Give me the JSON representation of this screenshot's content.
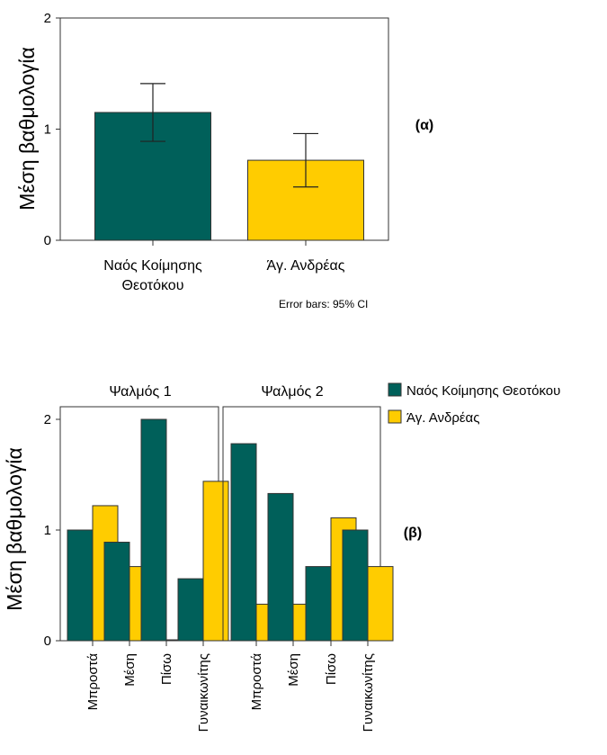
{
  "colors": {
    "series1": "#00605A",
    "series2": "#FFCC00",
    "frame": "#333333"
  },
  "chart_data": [
    {
      "type": "bar",
      "panel_label": "(α)",
      "ylabel": "Μέση βαθμολογία",
      "ylim": [
        0,
        2
      ],
      "yticks": [
        0,
        1,
        2
      ],
      "categories": [
        "Ναός Κοίμησης Θεοτόκου",
        "Άγ. Ανδρέας"
      ],
      "category_lines": [
        [
          "Ναός Κοίμησης",
          "Θεοτόκου"
        ],
        [
          "Άγ. Ανδρέας"
        ]
      ],
      "values": [
        1.15,
        0.72
      ],
      "error_bars": [
        [
          0.89,
          1.41
        ],
        [
          0.48,
          0.96
        ]
      ],
      "footnote": "Error bars: 95% CI"
    },
    {
      "type": "bar",
      "panel_label": "(β)",
      "ylabel": "Μέση βαθμολογία",
      "ylim": [
        0,
        2
      ],
      "yticks": [
        0,
        1,
        2
      ],
      "legend": [
        "Ναός Κοίμησης Θεοτόκου",
        "Άγ. Ανδρέας"
      ],
      "legend_position": "top-right",
      "facets": [
        {
          "title": "Ψαλμός 1",
          "categories": [
            "Μπροστά",
            "Μέση",
            "Πίσω",
            "Γυναικωνίτης"
          ],
          "series": [
            {
              "name": "Ναός Κοίμησης Θεοτόκου",
              "values": [
                1.0,
                0.89,
                2.0,
                0.56
              ]
            },
            {
              "name": "Άγ. Ανδρέας",
              "values": [
                1.22,
                0.67,
                0.0,
                1.44
              ]
            }
          ]
        },
        {
          "title": "Ψαλμός 2",
          "categories": [
            "Μπροστά",
            "Μέση",
            "Πίσω",
            "Γυναικωνίτης"
          ],
          "series": [
            {
              "name": "Ναός Κοίμησης Θεοτόκου",
              "values": [
                1.78,
                1.33,
                0.67,
                1.0
              ]
            },
            {
              "name": "Άγ. Ανδρέας",
              "values": [
                0.33,
                0.33,
                1.11,
                0.67
              ]
            }
          ]
        }
      ]
    }
  ]
}
